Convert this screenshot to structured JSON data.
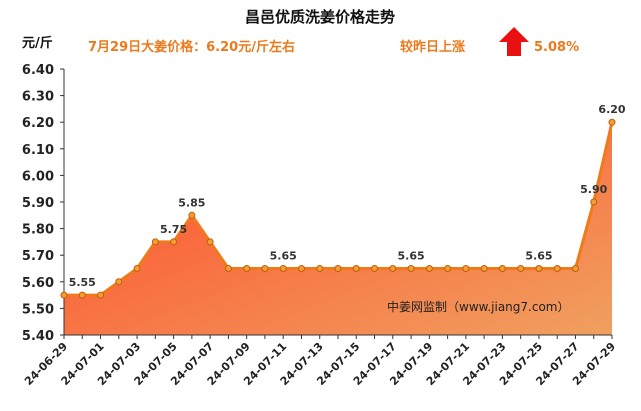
{
  "header": {
    "title": "昌邑优质洗姜价格走势",
    "unit": "元/斤",
    "price_note": "7月29日大姜价格：6.20元/斤左右",
    "change_note": "较昨日上涨",
    "change_pct": "5.08%",
    "arrow_icon": "up-arrow-icon",
    "arrow_color": "#e81010"
  },
  "source_note": "中姜网监制（www.jiang7.com）",
  "chart_data": {
    "type": "area",
    "title": "昌邑优质洗姜价格走势",
    "ylabel": "元/斤",
    "ylim": [
      5.4,
      6.4
    ],
    "yticks": [
      "6.40",
      "6.30",
      "6.20",
      "6.10",
      "6.00",
      "5.90",
      "5.80",
      "5.70",
      "5.60",
      "5.50",
      "5.40"
    ],
    "x": [
      "24-06-29",
      "24-06-30",
      "24-07-01",
      "24-07-02",
      "24-07-03",
      "24-07-04",
      "24-07-05",
      "24-07-06",
      "24-07-07",
      "24-07-08",
      "24-07-09",
      "24-07-10",
      "24-07-11",
      "24-07-12",
      "24-07-13",
      "24-07-14",
      "24-07-15",
      "24-07-16",
      "24-07-17",
      "24-07-18",
      "24-07-19",
      "24-07-20",
      "24-07-21",
      "24-07-22",
      "24-07-23",
      "24-07-24",
      "24-07-25",
      "24-07-26",
      "24-07-27",
      "24-07-28",
      "24-07-29"
    ],
    "xtick_labels": [
      "24-06-29",
      "24-07-01",
      "24-07-03",
      "24-07-05",
      "24-07-07",
      "24-07-09",
      "24-07-11",
      "24-07-13",
      "24-07-15",
      "24-07-17",
      "24-07-19",
      "24-07-21",
      "24-07-23",
      "24-07-25",
      "24-07-27",
      "24-07-29"
    ],
    "values": [
      5.55,
      5.55,
      5.55,
      5.6,
      5.65,
      5.75,
      5.75,
      5.85,
      5.75,
      5.65,
      5.65,
      5.65,
      5.65,
      5.65,
      5.65,
      5.65,
      5.65,
      5.65,
      5.65,
      5.65,
      5.65,
      5.65,
      5.65,
      5.65,
      5.65,
      5.65,
      5.65,
      5.65,
      5.65,
      5.9,
      6.2
    ],
    "data_labels": [
      {
        "index": 1,
        "text": "5.55"
      },
      {
        "index": 6,
        "text": "5.75"
      },
      {
        "index": 7,
        "text": "5.85"
      },
      {
        "index": 12,
        "text": "5.65"
      },
      {
        "index": 19,
        "text": "5.65"
      },
      {
        "index": 26,
        "text": "5.65"
      },
      {
        "index": 29,
        "text": "5.90"
      },
      {
        "index": 30,
        "text": "6.20"
      }
    ],
    "line_color": "#f07a1a",
    "marker_color": "#f0a030",
    "fill_top_color": "#ff4a2a",
    "fill_bottom_color": "#f0a060",
    "grid": false
  }
}
